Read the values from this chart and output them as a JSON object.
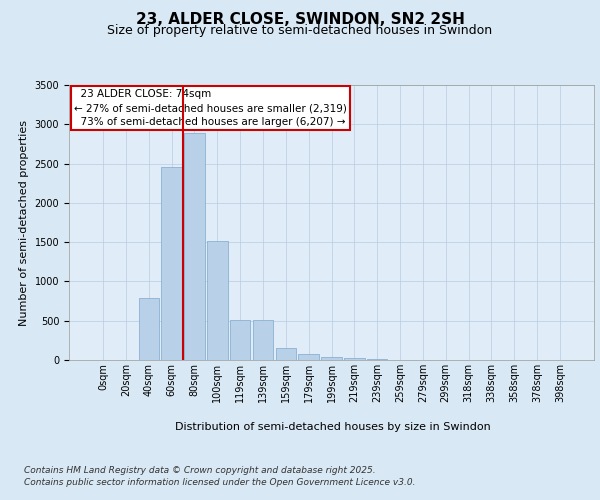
{
  "title1": "23, ALDER CLOSE, SWINDON, SN2 2SH",
  "title2": "Size of property relative to semi-detached houses in Swindon",
  "xlabel": "Distribution of semi-detached houses by size in Swindon",
  "ylabel": "Number of semi-detached properties",
  "categories": [
    "0sqm",
    "20sqm",
    "40sqm",
    "60sqm",
    "80sqm",
    "100sqm",
    "119sqm",
    "139sqm",
    "159sqm",
    "179sqm",
    "199sqm",
    "219sqm",
    "239sqm",
    "259sqm",
    "279sqm",
    "299sqm",
    "318sqm",
    "338sqm",
    "358sqm",
    "378sqm",
    "398sqm"
  ],
  "values": [
    0,
    5,
    790,
    2450,
    2890,
    1510,
    510,
    510,
    155,
    80,
    40,
    20,
    10,
    5,
    5,
    5,
    3,
    2,
    1,
    1,
    1
  ],
  "bar_color": "#b8d0e8",
  "bar_edge_color": "#7ca8cc",
  "property_label": "23 ALDER CLOSE: 74sqm",
  "smaller_pct": 27,
  "smaller_count": "2,319",
  "larger_pct": 73,
  "larger_count": "6,207",
  "ylim_max": 3500,
  "yticks": [
    0,
    500,
    1000,
    1500,
    2000,
    2500,
    3000,
    3500
  ],
  "background_color": "#d8e8f4",
  "plot_bg_color": "#e0ecf8",
  "grid_color": "#b8cce0",
  "red_line_color": "#cc0000",
  "red_line_x": 3.5,
  "footer1": "Contains HM Land Registry data © Crown copyright and database right 2025.",
  "footer2": "Contains public sector information licensed under the Open Government Licence v3.0.",
  "title_fontsize": 11,
  "subtitle_fontsize": 9,
  "ylabel_fontsize": 8,
  "xlabel_fontsize": 8,
  "tick_fontsize": 7,
  "annot_fontsize": 7.5,
  "footer_fontsize": 6.5
}
